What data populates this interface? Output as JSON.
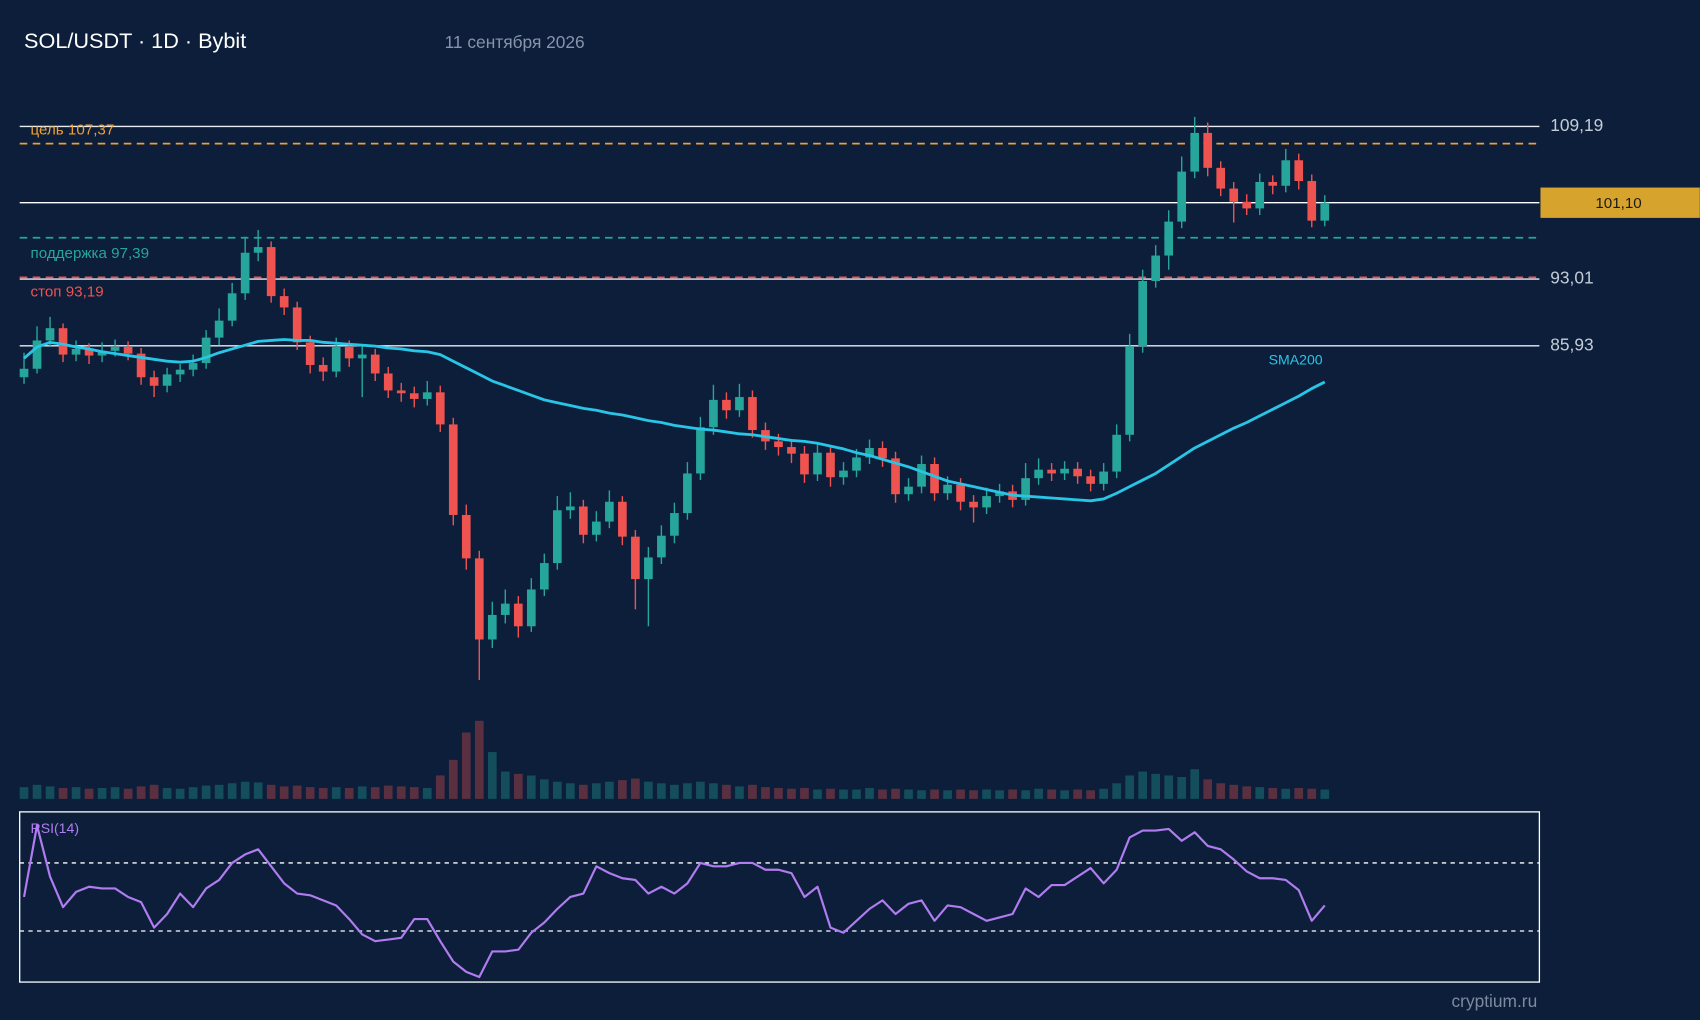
{
  "header": {
    "title": "SOL/USDT · 1D · Bybit",
    "date": "11 сентября 2026"
  },
  "watermark": "cryptium.ru",
  "chart_data": {
    "type": "candlestick",
    "up_color": "#26a69a",
    "down_color": "#ef5350",
    "ylim": [
      47.9,
      111.1
    ],
    "yticks": [
      {
        "value": 109.19,
        "label": "109,19"
      },
      {
        "value": 93.01,
        "label": "93,01"
      },
      {
        "value": 85.93,
        "label": "85,93"
      }
    ],
    "last_price": {
      "value": 101.1,
      "label": "101,10"
    },
    "last_price_color": "#d6a42c",
    "levels": [
      {
        "label": "цель 107,37",
        "value": 107.37,
        "color": "#f0a030"
      },
      {
        "label": "поддержка 97,39",
        "value": 97.39,
        "color": "#26a69a"
      },
      {
        "label": "стоп 93,19",
        "value": 93.19,
        "color": "#ef5350"
      }
    ],
    "candles": [
      [
        82.6,
        85.2,
        81.9,
        83.5
      ],
      [
        83.5,
        88.0,
        83.0,
        86.5
      ],
      [
        86.5,
        89.0,
        85.8,
        87.8
      ],
      [
        87.8,
        88.3,
        84.2,
        85.0
      ],
      [
        85.0,
        86.5,
        84.3,
        85.6
      ],
      [
        85.6,
        86.2,
        84.0,
        84.9
      ],
      [
        84.9,
        86.3,
        84.2,
        85.4
      ],
      [
        85.4,
        86.6,
        84.8,
        85.8
      ],
      [
        85.8,
        86.4,
        84.4,
        85.1
      ],
      [
        85.1,
        85.7,
        81.8,
        82.6
      ],
      [
        82.6,
        83.3,
        80.5,
        81.7
      ],
      [
        81.7,
        83.6,
        81.0,
        82.9
      ],
      [
        82.9,
        84.0,
        82.1,
        83.4
      ],
      [
        83.4,
        85.0,
        82.7,
        84.1
      ],
      [
        84.1,
        87.6,
        83.5,
        86.8
      ],
      [
        86.8,
        89.9,
        86.0,
        88.6
      ],
      [
        88.6,
        92.6,
        88.0,
        91.5
      ],
      [
        91.5,
        97.5,
        90.8,
        95.8
      ],
      [
        95.8,
        98.2,
        94.9,
        96.4
      ],
      [
        96.4,
        97.0,
        90.5,
        91.2
      ],
      [
        91.2,
        92.0,
        89.2,
        90.0
      ],
      [
        90.0,
        90.6,
        85.5,
        86.3
      ],
      [
        86.3,
        87.0,
        83.0,
        83.9
      ],
      [
        83.9,
        84.7,
        82.2,
        83.2
      ],
      [
        83.2,
        86.8,
        82.6,
        85.8
      ],
      [
        85.8,
        86.5,
        83.7,
        84.6
      ],
      [
        84.6,
        86.0,
        80.5,
        85.0
      ],
      [
        85.0,
        85.6,
        82.2,
        83.0
      ],
      [
        83.0,
        83.7,
        80.4,
        81.2
      ],
      [
        81.2,
        82.0,
        80.0,
        80.9
      ],
      [
        80.9,
        81.6,
        79.4,
        80.3
      ],
      [
        80.3,
        82.2,
        79.6,
        81.0
      ],
      [
        81.0,
        81.7,
        76.8,
        77.6
      ],
      [
        77.6,
        78.3,
        66.9,
        68.0
      ],
      [
        68.0,
        69.1,
        62.2,
        63.4
      ],
      [
        63.4,
        64.2,
        50.5,
        54.8
      ],
      [
        54.8,
        58.8,
        53.9,
        57.4
      ],
      [
        57.4,
        60.1,
        56.5,
        58.6
      ],
      [
        58.6,
        59.4,
        55.0,
        56.2
      ],
      [
        56.2,
        61.3,
        55.6,
        60.1
      ],
      [
        60.1,
        63.9,
        59.4,
        62.9
      ],
      [
        62.9,
        70.0,
        62.2,
        68.5
      ],
      [
        68.5,
        70.4,
        67.6,
        68.9
      ],
      [
        68.9,
        69.6,
        65.0,
        65.9
      ],
      [
        65.9,
        68.4,
        65.2,
        67.3
      ],
      [
        67.3,
        70.6,
        66.6,
        69.4
      ],
      [
        69.4,
        70.0,
        64.8,
        65.7
      ],
      [
        65.7,
        66.4,
        58.0,
        61.2
      ],
      [
        61.2,
        64.6,
        56.2,
        63.5
      ],
      [
        63.5,
        66.9,
        62.8,
        65.8
      ],
      [
        65.8,
        69.3,
        65.0,
        68.2
      ],
      [
        68.2,
        73.6,
        67.5,
        72.4
      ],
      [
        72.4,
        78.4,
        71.7,
        77.3
      ],
      [
        77.3,
        81.8,
        76.5,
        80.2
      ],
      [
        80.2,
        81.0,
        78.2,
        79.1
      ],
      [
        79.1,
        81.9,
        78.4,
        80.5
      ],
      [
        80.5,
        81.2,
        76.2,
        77.0
      ],
      [
        77.0,
        77.8,
        74.9,
        75.8
      ],
      [
        75.8,
        76.6,
        74.3,
        75.2
      ],
      [
        75.2,
        75.9,
        73.5,
        74.5
      ],
      [
        74.5,
        75.3,
        71.4,
        72.3
      ],
      [
        72.3,
        75.5,
        71.6,
        74.6
      ],
      [
        74.6,
        75.3,
        71.0,
        72.0
      ],
      [
        72.0,
        73.6,
        71.2,
        72.7
      ],
      [
        72.7,
        75.0,
        72.0,
        74.1
      ],
      [
        74.1,
        76.0,
        73.4,
        75.1
      ],
      [
        75.1,
        75.8,
        73.1,
        74.0
      ],
      [
        74.0,
        74.7,
        69.3,
        70.2
      ],
      [
        70.2,
        71.9,
        69.5,
        71.0
      ],
      [
        71.0,
        74.3,
        70.3,
        73.4
      ],
      [
        73.4,
        74.1,
        69.5,
        70.3
      ],
      [
        70.3,
        72.1,
        69.6,
        71.2
      ],
      [
        71.2,
        71.9,
        68.5,
        69.4
      ],
      [
        69.4,
        70.1,
        67.2,
        68.8
      ],
      [
        68.8,
        70.9,
        68.1,
        70.0
      ],
      [
        70.0,
        71.3,
        69.3,
        70.5
      ],
      [
        70.5,
        71.2,
        68.8,
        69.6
      ],
      [
        69.6,
        73.5,
        69.0,
        71.9
      ],
      [
        71.9,
        74.0,
        71.2,
        72.8
      ],
      [
        72.8,
        73.5,
        71.6,
        72.4
      ],
      [
        72.4,
        73.7,
        71.7,
        72.9
      ],
      [
        72.9,
        73.6,
        71.3,
        72.1
      ],
      [
        72.1,
        72.8,
        70.5,
        71.3
      ],
      [
        71.3,
        73.5,
        70.6,
        72.6
      ],
      [
        72.6,
        77.6,
        71.9,
        76.5
      ],
      [
        76.5,
        87.2,
        75.8,
        85.9
      ],
      [
        85.9,
        94.0,
        85.2,
        92.8
      ],
      [
        92.8,
        96.6,
        92.1,
        95.5
      ],
      [
        95.5,
        100.3,
        94.0,
        99.1
      ],
      [
        99.1,
        106.0,
        98.4,
        104.4
      ],
      [
        104.4,
        110.2,
        103.7,
        108.5
      ],
      [
        108.5,
        109.6,
        103.9,
        104.8
      ],
      [
        104.8,
        105.5,
        101.8,
        102.6
      ],
      [
        102.6,
        103.3,
        99.0,
        101.2
      ],
      [
        101.2,
        102.0,
        99.8,
        100.5
      ],
      [
        100.5,
        104.2,
        99.8,
        103.3
      ],
      [
        103.3,
        104.0,
        102.0,
        102.9
      ],
      [
        102.9,
        106.8,
        102.2,
        105.6
      ],
      [
        105.6,
        106.3,
        102.5,
        103.4
      ],
      [
        103.4,
        104.1,
        98.5,
        99.2
      ],
      [
        99.2,
        101.9,
        98.6,
        101.1
      ]
    ],
    "volume_lim": [
      0,
      100
    ],
    "volume": [
      15,
      18,
      16,
      14,
      15,
      13,
      14,
      15,
      13,
      16,
      18,
      14,
      13,
      15,
      17,
      18,
      20,
      22,
      21,
      18,
      16,
      17,
      15,
      14,
      15,
      14,
      16,
      15,
      17,
      16,
      15,
      14,
      30,
      50,
      85,
      100,
      60,
      35,
      32,
      30,
      25,
      22,
      20,
      18,
      20,
      22,
      24,
      26,
      22,
      20,
      18,
      20,
      22,
      20,
      18,
      16,
      18,
      15,
      14,
      13,
      14,
      12,
      13,
      12,
      12,
      14,
      12,
      13,
      12,
      11,
      12,
      11,
      12,
      11,
      12,
      11,
      12,
      11,
      13,
      12,
      11,
      12,
      11,
      13,
      20,
      30,
      35,
      32,
      30,
      28,
      38,
      25,
      20,
      18,
      16,
      15,
      14,
      13,
      14,
      13,
      12
    ],
    "sma": {
      "name": "SMA200",
      "color": "#29c5e6",
      "values": [
        84.6,
        85.8,
        86.3,
        86.1,
        85.8,
        85.6,
        85.3,
        85.1,
        84.9,
        84.7,
        84.5,
        84.3,
        84.2,
        84.3,
        84.7,
        85.2,
        85.6,
        86.0,
        86.4,
        86.5,
        86.6,
        86.5,
        86.5,
        86.3,
        86.2,
        86.1,
        86.0,
        85.9,
        85.7,
        85.6,
        85.4,
        85.3,
        85.0,
        84.3,
        83.6,
        82.9,
        82.2,
        81.7,
        81.2,
        80.7,
        80.2,
        79.9,
        79.6,
        79.3,
        79.1,
        78.8,
        78.6,
        78.3,
        78.0,
        77.8,
        77.5,
        77.3,
        77.1,
        77.0,
        76.8,
        76.6,
        76.5,
        76.3,
        76.1,
        75.9,
        75.8,
        75.6,
        75.3,
        75.0,
        74.6,
        74.3,
        73.9,
        73.5,
        73.1,
        72.6,
        72.1,
        71.6,
        71.3,
        71.0,
        70.7,
        70.4,
        70.1,
        70.0,
        69.9,
        69.8,
        69.7,
        69.6,
        69.5,
        69.7,
        70.3,
        71.0,
        71.7,
        72.4,
        73.3,
        74.2,
        75.1,
        75.8,
        76.5,
        77.2,
        77.8,
        78.5,
        79.2,
        79.9,
        80.6,
        81.4,
        82.1
      ]
    },
    "rsi": {
      "name": "RSI(14)",
      "color": "#b07cf0",
      "ylim": [
        0,
        100
      ],
      "levels": [
        70,
        30
      ],
      "values": [
        50,
        92,
        62,
        44,
        53,
        56,
        55,
        55,
        50,
        47,
        32,
        40,
        52,
        44,
        55,
        60,
        70,
        75,
        78,
        68,
        58,
        52,
        51,
        48,
        45,
        37,
        28,
        24,
        25,
        26,
        37,
        37,
        24,
        12,
        6,
        3,
        18,
        18,
        19,
        29,
        35,
        43,
        50,
        52,
        68,
        64,
        61,
        60,
        52,
        56,
        52,
        58,
        70,
        68,
        68,
        70,
        70,
        66,
        66,
        64,
        50,
        56,
        32,
        29,
        36,
        43,
        48,
        40,
        46,
        48,
        36,
        45,
        44,
        40,
        36,
        38,
        40,
        55,
        50,
        57,
        57,
        62,
        67,
        58,
        66,
        85,
        89,
        89,
        90,
        83,
        88,
        80,
        78,
        72,
        65,
        61,
        61,
        60,
        54,
        36,
        45
      ]
    }
  }
}
